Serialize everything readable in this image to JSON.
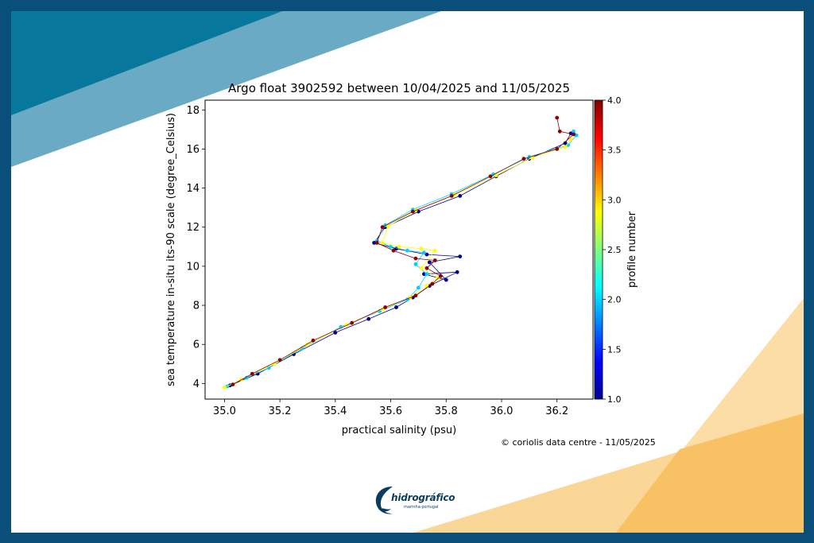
{
  "colors": {
    "frame": "#0a4f7a",
    "triangle_dark": "#08779c",
    "triangle_light": "#6aaac4",
    "orange_light": "#fbd797",
    "orange_dark": "#f8c164",
    "logo": "#0b3c5d"
  },
  "footer": {
    "credit": "© coriolis data centre - 11/05/2025",
    "logo_name": "hidrográfico",
    "logo_sub": "marinha·portugal",
    "logo_icon": "wave-swirl-icon"
  },
  "chart_data": {
    "type": "scatter",
    "title": "Argo float 3902592 between 10/04/2025 and 11/05/2025",
    "xlabel": "practical salinity (psu)",
    "ylabel": "sea temperature in-situ its-90 scale (degree_Celsius)",
    "xlim": [
      34.93,
      36.33
    ],
    "ylim": [
      3.2,
      18.5
    ],
    "xticks": [
      "35.0",
      "35.2",
      "35.4",
      "35.6",
      "35.8",
      "36.0",
      "36.2"
    ],
    "yticks": [
      "4",
      "6",
      "8",
      "10",
      "12",
      "14",
      "16",
      "18"
    ],
    "grid": false,
    "colorbar": {
      "label": "profile number",
      "min": 1.0,
      "max": 4.0,
      "ticks": [
        "1.0",
        "1.5",
        "2.0",
        "2.5",
        "3.0",
        "3.5",
        "4.0"
      ],
      "colormap": "jet"
    },
    "series": [
      {
        "profile": 1,
        "color": "#00008f",
        "x": [
          35.02,
          35.12,
          35.25,
          35.4,
          35.52,
          35.62,
          35.68,
          35.74,
          35.84,
          35.72,
          35.8,
          35.74,
          35.85,
          35.73,
          35.62,
          35.54,
          35.58,
          35.7,
          35.85,
          35.98,
          36.1,
          36.23,
          36.25
        ],
        "y": [
          3.9,
          4.5,
          5.5,
          6.6,
          7.3,
          7.9,
          8.4,
          9.0,
          9.7,
          9.6,
          9.3,
          10.2,
          10.5,
          10.6,
          10.9,
          11.2,
          12.0,
          12.8,
          13.6,
          14.6,
          15.5,
          16.3,
          16.8
        ]
      },
      {
        "profile": 2,
        "color": "#00cfff",
        "x": [
          35.01,
          35.08,
          35.16,
          35.28,
          35.42,
          35.56,
          35.66,
          35.7,
          35.73,
          35.69,
          35.72,
          35.66,
          35.6,
          35.55,
          35.58,
          35.68,
          35.82,
          35.97,
          36.1,
          36.24,
          36.27,
          36.26
        ],
        "y": [
          3.85,
          4.3,
          4.8,
          5.8,
          6.9,
          7.7,
          8.3,
          8.9,
          9.6,
          10.1,
          10.7,
          10.8,
          11.0,
          11.3,
          12.1,
          12.9,
          13.7,
          14.7,
          15.6,
          16.2,
          16.7,
          16.9
        ]
      },
      {
        "profile": 3,
        "color": "#ffff00",
        "x": [
          35.0,
          35.06,
          35.18,
          35.3,
          35.44,
          35.57,
          35.67,
          35.73,
          35.77,
          35.71,
          35.76,
          35.71,
          35.63,
          35.57,
          35.59,
          35.69,
          35.83,
          35.98,
          36.11,
          36.23,
          36.25
        ],
        "y": [
          3.8,
          4.2,
          5.0,
          6.0,
          7.0,
          7.8,
          8.4,
          9.0,
          9.4,
          9.9,
          10.8,
          10.9,
          11.0,
          11.2,
          12.05,
          12.85,
          13.65,
          14.65,
          15.55,
          16.1,
          16.5
        ]
      },
      {
        "profile": 4,
        "color": "#8f0000",
        "x": [
          35.03,
          35.1,
          35.2,
          35.32,
          35.46,
          35.58,
          35.69,
          35.75,
          35.78,
          35.73,
          35.76,
          35.69,
          35.61,
          35.55,
          35.57,
          35.68,
          35.82,
          35.96,
          36.08,
          36.2,
          36.26,
          36.21,
          36.2
        ],
        "y": [
          3.95,
          4.5,
          5.2,
          6.2,
          7.1,
          7.9,
          8.5,
          9.1,
          9.5,
          9.9,
          10.3,
          10.4,
          10.8,
          11.2,
          12.0,
          12.8,
          13.6,
          14.6,
          15.5,
          16.0,
          16.75,
          16.9,
          17.6
        ]
      }
    ]
  }
}
